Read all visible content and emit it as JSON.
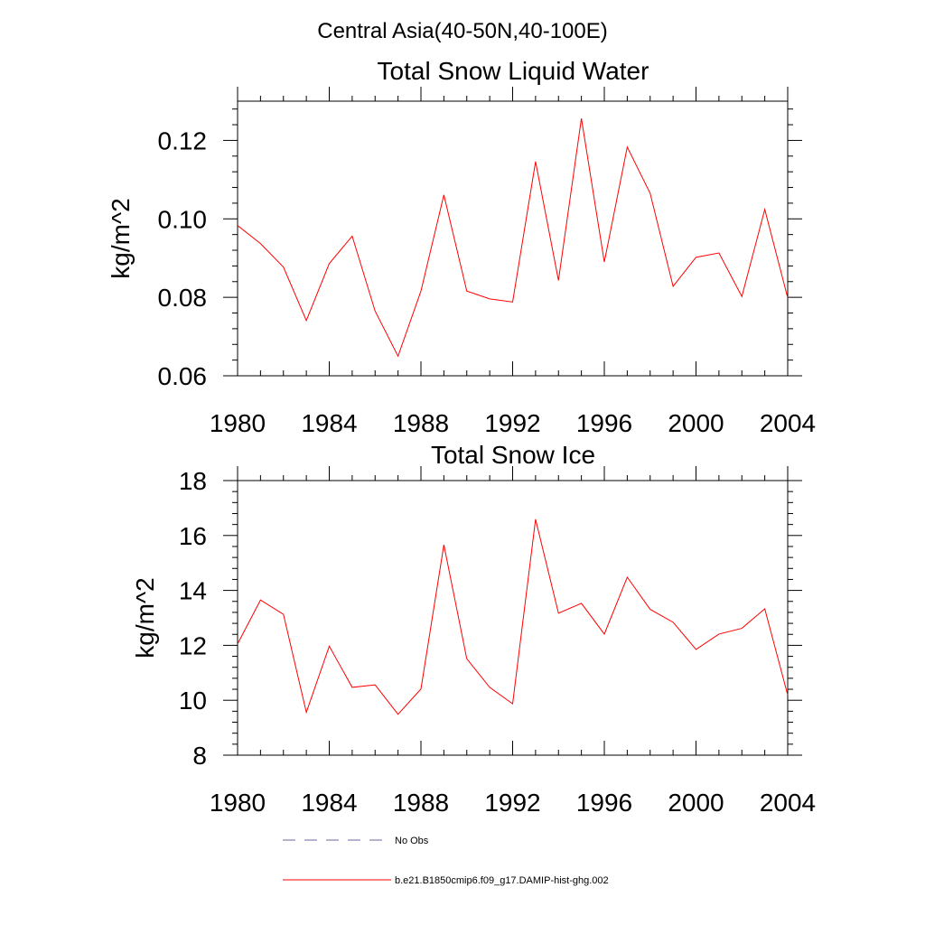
{
  "figure_title": "Central Asia(40-50N,40-100E)",
  "chart_data": [
    {
      "type": "line",
      "title": "Total Snow Liquid Water",
      "xlabel": "",
      "ylabel": "kg/m^2",
      "xlim": [
        1980,
        2004
      ],
      "ylim": [
        0.06,
        0.13
      ],
      "x_ticks": [
        1980,
        1984,
        1988,
        1992,
        1996,
        2000,
        2004
      ],
      "x_tick_labels": [
        "1980",
        "1984",
        "1988",
        "1992",
        "1996",
        "2000",
        "2004"
      ],
      "y_ticks": [
        0.06,
        0.08,
        0.1,
        0.12
      ],
      "y_tick_labels": [
        "0.06",
        "0.08",
        "0.10",
        "0.12"
      ],
      "grid": false,
      "series": [
        {
          "name": "b.e21.B1850cmip6.f09_g17.DAMIP-hist-ghg.002",
          "color": "#ff0000",
          "x": [
            1980,
            1981,
            1982,
            1983,
            1984,
            1985,
            1986,
            1987,
            1988,
            1989,
            1990,
            1991,
            1992,
            1993,
            1994,
            1995,
            1996,
            1997,
            1998,
            1999,
            2000,
            2001,
            2002,
            2003,
            2004
          ],
          "values": [
            0.0983,
            0.0937,
            0.0877,
            0.0741,
            0.0886,
            0.0956,
            0.0765,
            0.065,
            0.0816,
            0.1061,
            0.0816,
            0.0796,
            0.0788,
            0.1146,
            0.0843,
            0.1256,
            0.089,
            0.1183,
            0.1065,
            0.0828,
            0.0902,
            0.0913,
            0.0802,
            0.1024,
            0.0799
          ]
        }
      ]
    },
    {
      "type": "line",
      "title": "Total Snow Ice",
      "xlabel": "",
      "ylabel": "kg/m^2",
      "xlim": [
        1980,
        2004
      ],
      "ylim": [
        8,
        18
      ],
      "x_ticks": [
        1980,
        1984,
        1988,
        1992,
        1996,
        2000,
        2004
      ],
      "x_tick_labels": [
        "1980",
        "1984",
        "1988",
        "1992",
        "1996",
        "2000",
        "2004"
      ],
      "y_ticks": [
        8,
        10,
        12,
        14,
        16,
        18
      ],
      "y_tick_labels": [
        "8",
        "10",
        "12",
        "14",
        "16",
        "18"
      ],
      "grid": false,
      "series": [
        {
          "name": "b.e21.B1850cmip6.f09_g17.DAMIP-hist-ghg.002",
          "color": "#ff0000",
          "x": [
            1980,
            1981,
            1982,
            1983,
            1984,
            1985,
            1986,
            1987,
            1988,
            1989,
            1990,
            1991,
            1992,
            1993,
            1994,
            1995,
            1996,
            1997,
            1998,
            1999,
            2000,
            2001,
            2002,
            2003,
            2004
          ],
          "values": [
            12.05,
            13.65,
            13.13,
            9.56,
            11.97,
            10.47,
            10.56,
            9.49,
            10.41,
            15.66,
            11.51,
            10.47,
            9.87,
            16.59,
            13.17,
            13.53,
            12.41,
            14.48,
            13.31,
            12.84,
            11.85,
            12.41,
            12.62,
            13.33,
            10.19
          ]
        }
      ]
    }
  ],
  "legend": {
    "placement": "bottom",
    "entries": [
      {
        "label": "No Obs",
        "color": "#6a6aa0",
        "style": "dashed"
      },
      {
        "label": "b.e21.B1850cmip6.f09_g17.DAMIP-hist-ghg.002",
        "color": "#ff0000",
        "style": "solid"
      }
    ]
  }
}
